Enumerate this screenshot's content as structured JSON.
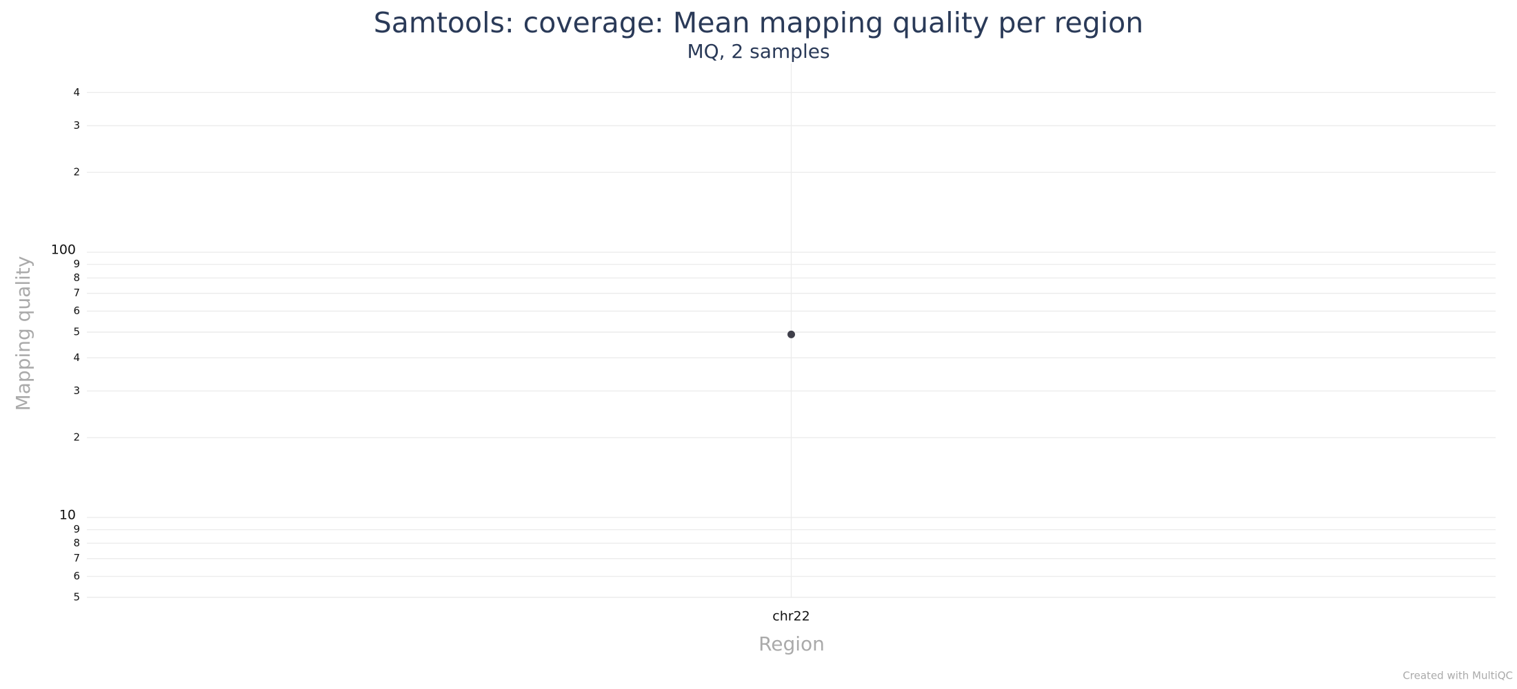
{
  "chart_data": {
    "type": "scatter",
    "title": "Samtools: coverage: Mean mapping quality per region",
    "subtitle": "MQ, 2 samples",
    "xlabel": "Region",
    "ylabel": "Mapping quality",
    "credit": "Created with MultiQC",
    "categories": [
      "chr22"
    ],
    "values": [
      49
    ],
    "color": "#3f3f4a",
    "log_scale": true,
    "grid": true,
    "ylim": [
      5,
      500
    ],
    "yticks": [
      5,
      6,
      7,
      8,
      9,
      10,
      {
        "value": 20,
        "label": "2"
      },
      {
        "value": 30,
        "label": "3"
      },
      {
        "value": 40,
        "label": "4"
      },
      {
        "value": 50,
        "label": "5"
      },
      {
        "value": 60,
        "label": "6"
      },
      {
        "value": 70,
        "label": "7"
      },
      {
        "value": 80,
        "label": "8"
      },
      {
        "value": 90,
        "label": "9"
      },
      100,
      {
        "value": 200,
        "label": "2"
      },
      {
        "value": 300,
        "label": "3"
      },
      {
        "value": 400,
        "label": "4"
      }
    ]
  }
}
